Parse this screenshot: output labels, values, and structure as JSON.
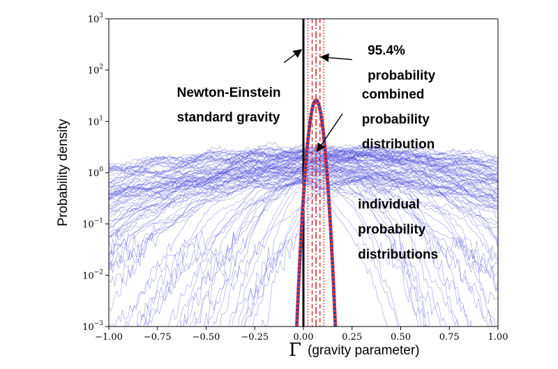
{
  "chart_data": {
    "type": "line",
    "title": "",
    "xlabel_symbol": "Γ",
    "xlabel_text": "(gravity parameter)",
    "ylabel": "Probability density",
    "xlim": [
      -1.0,
      1.0
    ],
    "ylim": [
      0.001,
      1000
    ],
    "yscale": "log",
    "grid": false,
    "x_ticks": [
      -1.0,
      -0.75,
      -0.5,
      -0.25,
      0.0,
      0.25,
      0.5,
      0.75,
      1.0
    ],
    "x_tick_labels": [
      "−1.00",
      "−0.75",
      "−0.50",
      "−0.25",
      "0.00",
      "0.25",
      "0.50",
      "0.75",
      "1.00"
    ],
    "y_ticks": [
      {
        "value": 1000,
        "base": "10",
        "exp": "3"
      },
      {
        "value": 100,
        "base": "10",
        "exp": "2"
      },
      {
        "value": 10,
        "base": "10",
        "exp": "1"
      },
      {
        "value": 1,
        "base": "10",
        "exp": "0"
      },
      {
        "value": 0.1,
        "base": "10",
        "exp": "−1"
      },
      {
        "value": 0.01,
        "base": "10",
        "exp": "−2"
      },
      {
        "value": 0.001,
        "base": "10",
        "exp": "−3"
      }
    ],
    "newton_einstein_line": {
      "x": 0.0,
      "color": "#000000"
    },
    "combined_distribution": {
      "peak_x": 0.065,
      "peak_y": 26,
      "sigma": 0.022,
      "color": "#e0393e",
      "dotted_color": "#1f3fbf"
    },
    "interval_95": {
      "median": 0.065,
      "inner_dashed": [
        0.045,
        0.085
      ],
      "outer_dotted": [
        0.023,
        0.105
      ],
      "color": "#d62728"
    },
    "individual_distributions": {
      "count": 90,
      "color": "#4a4ad8",
      "peak_range": [
        0.5,
        3.0
      ]
    },
    "annotations": [
      {
        "id": "interval",
        "lines": [
          "95.4%",
          "probability"
        ],
        "x": 0.33,
        "y_line1": 200,
        "y_line2": 65
      },
      {
        "id": "standard",
        "lines": [
          "Newton-Einstein",
          "standard gravity"
        ],
        "x": -0.65,
        "y_line1": 30,
        "y_line2": 10
      },
      {
        "id": "combined",
        "lines": [
          "combined",
          "probability",
          "distribution"
        ],
        "x": 0.3,
        "y_line1": 28,
        "y_line2": 9,
        "y_line3": 3.0
      },
      {
        "id": "individual",
        "lines": [
          "individual",
          "probability",
          "distributions"
        ],
        "x": 0.28,
        "y_line1": 0.2,
        "y_line2": 0.065,
        "y_line3": 0.021
      }
    ],
    "arrows": [
      {
        "from": [
          -0.1,
          140
        ],
        "to": [
          -0.01,
          250
        ]
      },
      {
        "from": [
          0.25,
          160
        ],
        "to": [
          0.09,
          180
        ]
      },
      {
        "from": [
          0.2,
          14
        ],
        "to": [
          0.07,
          2.6
        ]
      }
    ]
  }
}
